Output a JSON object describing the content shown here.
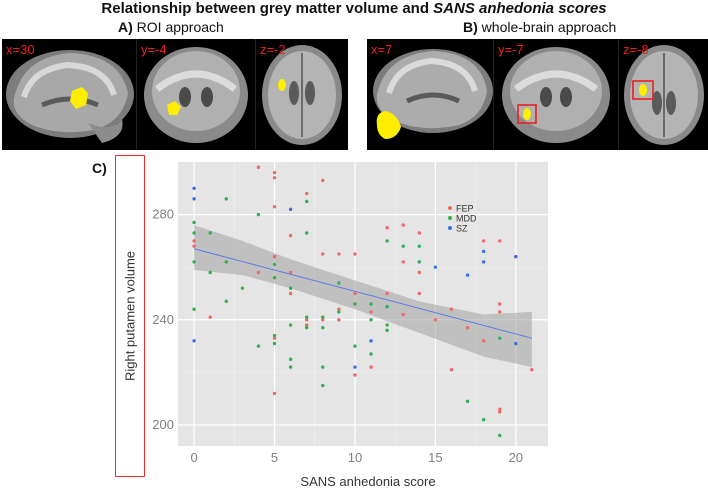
{
  "figure": {
    "title_plain": "Relationship between grey matter volume and ",
    "title_italic": "SANS anhedonia scores",
    "panel_a_letter": "A)",
    "panel_a_text": "ROI approach",
    "panel_b_letter": "B)",
    "panel_b_text": "whole-brain approach",
    "panel_c_letter": "C)",
    "scans_a": [
      "x=30",
      "y=-4",
      "z=-2"
    ],
    "scans_b": [
      "x=7",
      "y=-7",
      "z=-8"
    ],
    "colors": {
      "highlight": "#ffee00",
      "roi_box": "#e82020"
    }
  },
  "chart_data": {
    "type": "scatter",
    "title": "",
    "xlabel": "SANS anhedonia score",
    "ylabel": "Right putamen volume",
    "xlim": [
      -1,
      22
    ],
    "ylim": [
      192,
      300
    ],
    "xticks": [
      0,
      5,
      10,
      15,
      20
    ],
    "yticks": [
      200,
      240,
      280
    ],
    "grid": true,
    "legend_position": "top-right",
    "series": [
      {
        "name": "FEP",
        "color": "#f06b5e",
        "points": [
          [
            0,
            268
          ],
          [
            0,
            270
          ],
          [
            1,
            241
          ],
          [
            4,
            298
          ],
          [
            4,
            258
          ],
          [
            5,
            296
          ],
          [
            5,
            294
          ],
          [
            5,
            283
          ],
          [
            5,
            264
          ],
          [
            5,
            233
          ],
          [
            5,
            212
          ],
          [
            6,
            258
          ],
          [
            6,
            272
          ],
          [
            6,
            250
          ],
          [
            7,
            288
          ],
          [
            7,
            240
          ],
          [
            7,
            238
          ],
          [
            8,
            293
          ],
          [
            8,
            265
          ],
          [
            8,
            240
          ],
          [
            9,
            265
          ],
          [
            9,
            244
          ],
          [
            9,
            240
          ],
          [
            10,
            265
          ],
          [
            10,
            250
          ],
          [
            10,
            219
          ],
          [
            11,
            243
          ],
          [
            11,
            222
          ],
          [
            12,
            275
          ],
          [
            12,
            250
          ],
          [
            13,
            276
          ],
          [
            13,
            262
          ],
          [
            13,
            242
          ],
          [
            14,
            273
          ],
          [
            14,
            258
          ],
          [
            14,
            250
          ],
          [
            15,
            240
          ],
          [
            16,
            244
          ],
          [
            16,
            221
          ],
          [
            17,
            237
          ],
          [
            18,
            270
          ],
          [
            18,
            232
          ],
          [
            19,
            270
          ],
          [
            19,
            246
          ],
          [
            19,
            243
          ],
          [
            19,
            206
          ],
          [
            19,
            205
          ],
          [
            20,
            264
          ],
          [
            21,
            221
          ]
        ]
      },
      {
        "name": "MDD",
        "color": "#2fb24a",
        "points": [
          [
            0,
            277
          ],
          [
            0,
            273
          ],
          [
            0,
            262
          ],
          [
            0,
            244
          ],
          [
            1,
            273
          ],
          [
            1,
            258
          ],
          [
            2,
            286
          ],
          [
            2,
            262
          ],
          [
            2,
            247
          ],
          [
            3,
            252
          ],
          [
            4,
            280
          ],
          [
            4,
            230
          ],
          [
            5,
            261
          ],
          [
            5,
            256
          ],
          [
            5,
            234
          ],
          [
            5,
            231
          ],
          [
            6,
            252
          ],
          [
            6,
            238
          ],
          [
            6,
            225
          ],
          [
            6,
            222
          ],
          [
            7,
            285
          ],
          [
            7,
            273
          ],
          [
            7,
            241
          ],
          [
            7,
            237
          ],
          [
            8,
            241
          ],
          [
            8,
            237
          ],
          [
            8,
            222
          ],
          [
            8,
            215
          ],
          [
            9,
            254
          ],
          [
            9,
            243
          ],
          [
            10,
            246
          ],
          [
            10,
            230
          ],
          [
            11,
            246
          ],
          [
            11,
            240
          ],
          [
            11,
            227
          ],
          [
            12,
            270
          ],
          [
            12,
            245
          ],
          [
            12,
            238
          ],
          [
            12,
            236
          ],
          [
            13,
            268
          ],
          [
            14,
            268
          ],
          [
            14,
            262
          ],
          [
            17,
            209
          ],
          [
            18,
            202
          ],
          [
            19,
            196
          ],
          [
            19,
            233
          ]
        ]
      },
      {
        "name": "SZ",
        "color": "#3a6fe8",
        "points": [
          [
            0,
            290
          ],
          [
            0,
            286
          ],
          [
            0,
            232
          ],
          [
            6,
            282
          ],
          [
            10,
            222
          ],
          [
            11,
            232
          ],
          [
            15,
            260
          ],
          [
            17,
            257
          ],
          [
            18,
            266
          ],
          [
            18,
            262
          ],
          [
            20,
            264
          ],
          [
            20,
            231
          ]
        ]
      }
    ],
    "fit_line": {
      "x": [
        0,
        21
      ],
      "y": [
        267,
        233
      ]
    },
    "confidence_band": {
      "x": [
        0,
        3,
        6,
        10,
        14,
        18,
        21
      ],
      "lower": [
        259,
        257,
        252,
        244,
        235,
        226,
        222
      ],
      "upper": [
        276,
        270,
        263,
        255,
        247,
        242,
        243
      ]
    }
  }
}
